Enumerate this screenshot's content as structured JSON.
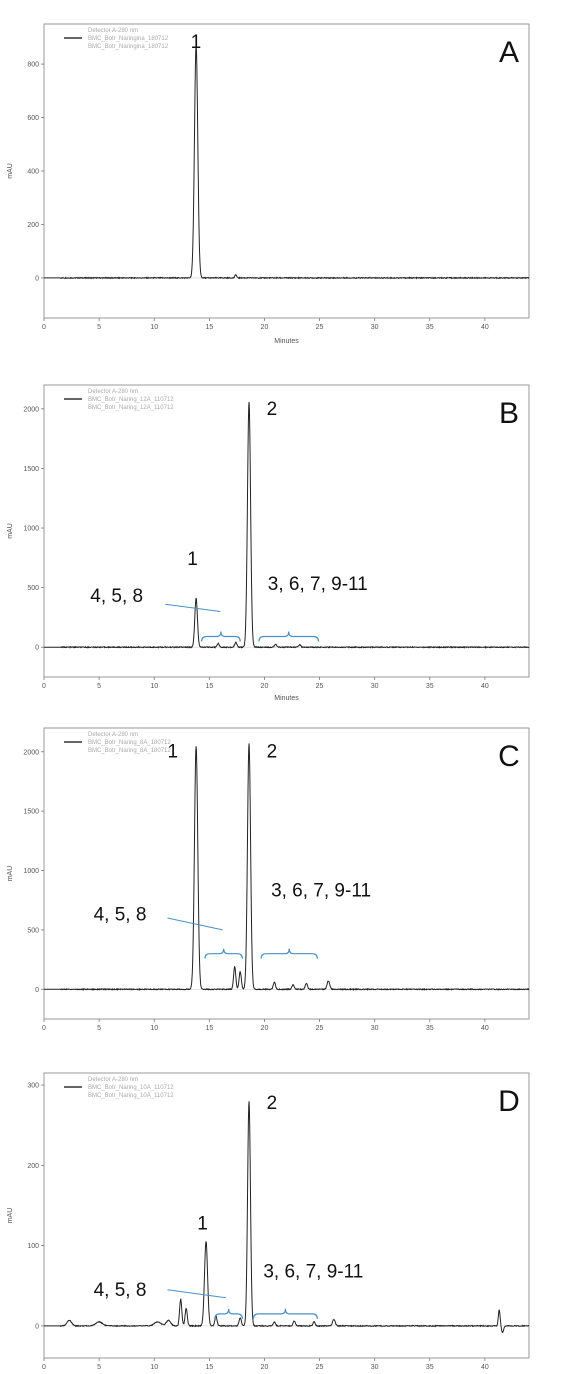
{
  "chart_data": [
    {
      "type": "line",
      "panel": "A",
      "xlabel": "Minutes",
      "ylabel": "mAU",
      "xlim": [
        0,
        44
      ],
      "ylim": [
        -150,
        950
      ],
      "xticks": [
        0,
        5,
        10,
        15,
        20,
        25,
        30,
        35,
        40
      ],
      "yticks": [
        0,
        200,
        400,
        600,
        800
      ],
      "legend": [
        "Detector A-280 nm",
        "BMC_Botr_Naringina_180712",
        "BMC_Botr_Naringina_180712"
      ],
      "baseline": 0,
      "peaks": [
        {
          "x": 13.8,
          "y": 870,
          "w": 0.15
        },
        {
          "x": 17.4,
          "y": 12,
          "w": 0.08
        }
      ],
      "annotations": [
        {
          "text": "1",
          "x": 13.3,
          "y": 860
        }
      ],
      "brackets": []
    },
    {
      "type": "line",
      "panel": "B",
      "xlabel": "Minutes",
      "ylabel": "mAU",
      "xlim": [
        0,
        44
      ],
      "ylim": [
        -250,
        2200
      ],
      "xticks": [
        0,
        5,
        10,
        15,
        20,
        25,
        30,
        35,
        40
      ],
      "yticks": [
        0,
        500,
        1000,
        1500,
        2000
      ],
      "legend": [
        "Detector A-280 nm",
        "BMC_Botr_Naring_12A_110712",
        "BMC_Botr_Naring_12A_110712"
      ],
      "baseline": 0,
      "peaks": [
        {
          "x": 13.8,
          "y": 410,
          "w": 0.12
        },
        {
          "x": 15.8,
          "y": 30,
          "w": 0.1
        },
        {
          "x": 17.4,
          "y": 40,
          "w": 0.1
        },
        {
          "x": 18.6,
          "y": 2060,
          "w": 0.14
        },
        {
          "x": 21.0,
          "y": 25,
          "w": 0.1
        },
        {
          "x": 23.2,
          "y": 20,
          "w": 0.1
        }
      ],
      "annotations": [
        {
          "text": "2",
          "x": 20.2,
          "y": 1950
        },
        {
          "text": "1",
          "x": 13.0,
          "y": 690
        },
        {
          "text": "4, 5, 8",
          "x": 4.2,
          "y": 380
        },
        {
          "text": "3, 6, 7, 9-11",
          "x": 20.3,
          "y": 480
        }
      ],
      "brackets": [
        {
          "x1": 14.3,
          "x2": 17.8,
          "y": 90
        },
        {
          "x1": 19.5,
          "x2": 24.9,
          "y": 90
        }
      ],
      "pointer": {
        "from": [
          11.0,
          360
        ],
        "to": [
          16.0,
          300
        ]
      }
    },
    {
      "type": "line",
      "panel": "C",
      "xlabel": "",
      "ylabel": "mAU",
      "xlim": [
        0,
        44
      ],
      "ylim": [
        -250,
        2200
      ],
      "xticks": [
        0,
        5,
        10,
        15,
        20,
        25,
        30,
        35,
        40
      ],
      "yticks": [
        0,
        500,
        1000,
        1500,
        2000
      ],
      "legend": [
        "Detector A-280 nm",
        "BMC_Botr_Naring_8A_180712",
        "BMC_Botr_Naring_8A_180712"
      ],
      "baseline": 0,
      "peaks": [
        {
          "x": 13.8,
          "y": 2050,
          "w": 0.15
        },
        {
          "x": 17.3,
          "y": 190,
          "w": 0.1
        },
        {
          "x": 17.8,
          "y": 150,
          "w": 0.1
        },
        {
          "x": 18.6,
          "y": 2070,
          "w": 0.14
        },
        {
          "x": 20.9,
          "y": 60,
          "w": 0.1
        },
        {
          "x": 22.6,
          "y": 40,
          "w": 0.1
        },
        {
          "x": 23.8,
          "y": 50,
          "w": 0.1
        },
        {
          "x": 25.8,
          "y": 70,
          "w": 0.12
        }
      ],
      "annotations": [
        {
          "text": "1",
          "x": 11.2,
          "y": 1950
        },
        {
          "text": "2",
          "x": 20.2,
          "y": 1950
        },
        {
          "text": "4, 5, 8",
          "x": 4.5,
          "y": 580
        },
        {
          "text": "3, 6, 7, 9-11",
          "x": 20.6,
          "y": 780
        }
      ],
      "brackets": [
        {
          "x1": 14.6,
          "x2": 18.0,
          "y": 300
        },
        {
          "x1": 19.7,
          "x2": 24.8,
          "y": 300
        }
      ],
      "pointer": {
        "from": [
          11.2,
          600
        ],
        "to": [
          16.2,
          500
        ]
      }
    },
    {
      "type": "line",
      "panel": "D",
      "xlabel": "",
      "ylabel": "mAU",
      "xlim": [
        0,
        44
      ],
      "ylim": [
        -40,
        315
      ],
      "xticks": [
        0,
        5,
        10,
        15,
        20,
        25,
        30,
        35,
        40
      ],
      "yticks": [
        0,
        100,
        200,
        300
      ],
      "legend": [
        "Detector A-280 nm",
        "BMC_Botr_Naring_10A_110712",
        "BMC_Botr_Naring_10A_110712"
      ],
      "baseline": 0,
      "peaks": [
        {
          "x": 2.3,
          "y": 7,
          "w": 0.2
        },
        {
          "x": 5.0,
          "y": 5,
          "w": 0.3
        },
        {
          "x": 10.3,
          "y": 5,
          "w": 0.3
        },
        {
          "x": 11.3,
          "y": 7,
          "w": 0.2
        },
        {
          "x": 12.4,
          "y": 33,
          "w": 0.1
        },
        {
          "x": 12.9,
          "y": 22,
          "w": 0.1
        },
        {
          "x": 14.7,
          "y": 105,
          "w": 0.14
        },
        {
          "x": 15.6,
          "y": 12,
          "w": 0.1
        },
        {
          "x": 17.8,
          "y": 10,
          "w": 0.1
        },
        {
          "x": 18.6,
          "y": 280,
          "w": 0.13
        },
        {
          "x": 20.9,
          "y": 5,
          "w": 0.1
        },
        {
          "x": 22.7,
          "y": 6,
          "w": 0.1
        },
        {
          "x": 24.5,
          "y": 5,
          "w": 0.1
        },
        {
          "x": 26.3,
          "y": 8,
          "w": 0.12
        },
        {
          "x": 41.3,
          "y": 20,
          "w": 0.08
        },
        {
          "x": 41.6,
          "y": -8,
          "w": 0.1
        }
      ],
      "annotations": [
        {
          "text": "2",
          "x": 20.2,
          "y": 270
        },
        {
          "text": "1",
          "x": 13.9,
          "y": 120
        },
        {
          "text": "4, 5, 8",
          "x": 4.5,
          "y": 37
        },
        {
          "text": "3, 6, 7, 9-11",
          "x": 19.9,
          "y": 60
        }
      ],
      "brackets": [
        {
          "x1": 15.5,
          "x2": 18.0,
          "y": 15
        },
        {
          "x1": 19.0,
          "x2": 24.8,
          "y": 15
        }
      ],
      "pointer": {
        "from": [
          11.2,
          45
        ],
        "to": [
          16.5,
          35
        ]
      }
    }
  ]
}
